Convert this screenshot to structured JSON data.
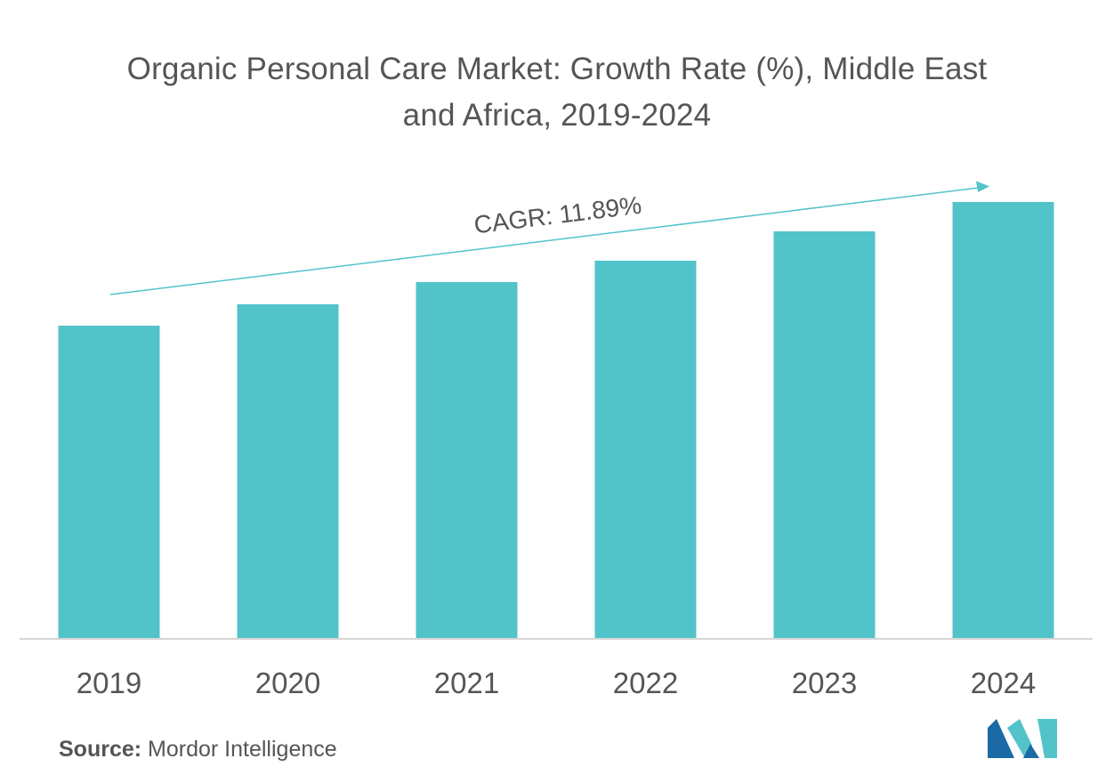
{
  "chart_data": {
    "type": "bar",
    "title": "Organic Personal Care Market: Growth Rate (%), Middle East and Africa, 2019-2024",
    "categories": [
      "2019",
      "2020",
      "2021",
      "2022",
      "2023",
      "2024"
    ],
    "values": [
      352,
      376,
      401,
      425,
      458,
      491
    ],
    "ylim": [
      0,
      550
    ],
    "xlabel": "",
    "ylabel": "",
    "grid": false,
    "legend": "none",
    "annotation": "CAGR: 11.89%",
    "bar_color": "#53c3ca",
    "arrow_color": "#53c3ca"
  },
  "source": {
    "label": "Source:",
    "text": "Mordor Intelligence"
  },
  "logo": {
    "icon": "mordor-intelligence-logo-icon",
    "colors": [
      "#1b6aa5",
      "#53c3ca"
    ]
  }
}
